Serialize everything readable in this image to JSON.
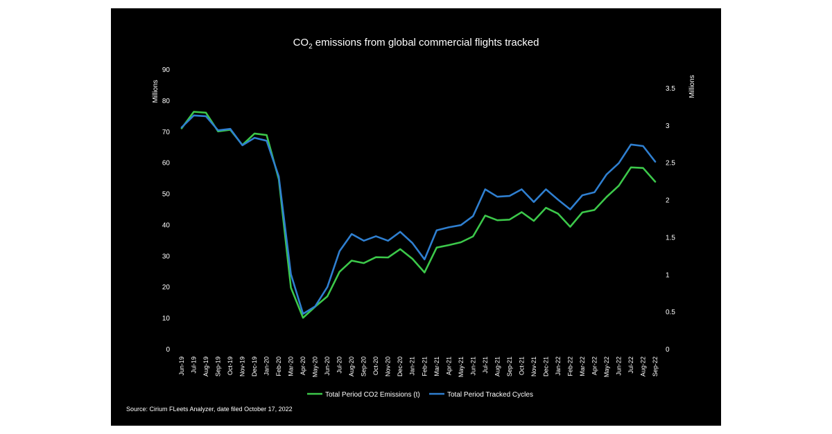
{
  "title": {
    "prefix": "CO",
    "subscript": "2",
    "rest": " emissions from global commercial flights tracked"
  },
  "source_note": "Source: Cirium FLeets Analyzer, date filed October 17, 2022",
  "chart_data": {
    "type": "line",
    "y_left": {
      "label": "Millions",
      "ticks": [
        "0",
        "10",
        "20",
        "30",
        "40",
        "50",
        "60",
        "70",
        "80",
        "90"
      ],
      "range": [
        0,
        90
      ]
    },
    "y_right": {
      "label": "Millions",
      "ticks": [
        "0",
        "0.5",
        "1",
        "1.5",
        "2",
        "2.5",
        "3",
        "3.5"
      ],
      "range": [
        0,
        3.75
      ]
    },
    "categories": [
      "Jun-19",
      "Jul-19",
      "Aug-19",
      "Sep-19",
      "Oct-19",
      "Nov-19",
      "Dec-19",
      "Jan-20",
      "Feb-20",
      "Mar-20",
      "Apr-20",
      "May-20",
      "Jun-20",
      "Jul-20",
      "Aug-20",
      "Sep-20",
      "Oct-20",
      "Nov-20",
      "Dec-20",
      "Jan-21",
      "Feb-21",
      "Mar-21",
      "Apr-21",
      "May-21",
      "Jun-21",
      "Jul-21",
      "Aug-21",
      "Sep-21",
      "Oct-21",
      "Nov-21",
      "Dec-21",
      "Jan-22",
      "Feb-22",
      "Mar-22",
      "Apr-22",
      "May-22",
      "Jun-22",
      "Jul-22",
      "Aug-22",
      "Sep-22"
    ],
    "series": [
      {
        "name": "Total Period CO2 Emissions (t)",
        "axis": "left",
        "color": "#3cc84a",
        "values": [
          71.0,
          76.3,
          76.0,
          70.0,
          70.5,
          65.6,
          69.3,
          68.8,
          54.6,
          19.7,
          10.0,
          13.6,
          16.9,
          24.8,
          28.4,
          27.6,
          29.5,
          29.4,
          32.1,
          29.0,
          24.6,
          32.6,
          33.4,
          34.3,
          36.2,
          42.9,
          41.4,
          41.6,
          44.0,
          41.2,
          45.4,
          43.5,
          39.3,
          43.9,
          44.7,
          48.9,
          52.5,
          58.4,
          58.2,
          53.8
        ]
      },
      {
        "name": "Total Period Tracked Cycles",
        "axis": "right",
        "color": "#2f7fd0",
        "values": [
          2.97,
          3.13,
          3.12,
          2.93,
          2.95,
          2.73,
          2.83,
          2.79,
          2.31,
          1.0,
          0.47,
          0.57,
          0.83,
          1.31,
          1.54,
          1.45,
          1.51,
          1.45,
          1.57,
          1.42,
          1.2,
          1.59,
          1.63,
          1.66,
          1.78,
          2.14,
          2.04,
          2.05,
          2.14,
          1.97,
          2.14,
          2.0,
          1.87,
          2.06,
          2.1,
          2.34,
          2.49,
          2.74,
          2.72,
          2.51
        ]
      }
    ],
    "legend_position": "bottom"
  }
}
